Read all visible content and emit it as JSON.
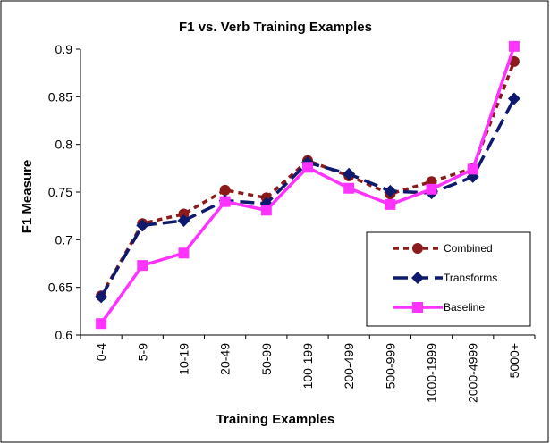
{
  "chart_data": {
    "type": "line",
    "title": "F1 vs. Verb Training Examples",
    "xlabel": "Training Examples",
    "ylabel": "F1 Measure",
    "categories": [
      "0-4",
      "5-9",
      "10-19",
      "20-49",
      "50-99",
      "100-199",
      "200-499",
      "500-999",
      "1000-1999",
      "2000-4999",
      "5000+"
    ],
    "ylim": [
      0.6,
      0.9
    ],
    "yticks": [
      "0.6",
      "0.65",
      "0.7",
      "0.75",
      "0.8",
      "0.85",
      "0.9"
    ],
    "grid": false,
    "legend_position": "right",
    "series": [
      {
        "name": "Combined",
        "color": "#8b1a1a",
        "line_style": "dotted",
        "marker": "circle",
        "values": [
          0.641,
          0.717,
          0.727,
          0.752,
          0.744,
          0.783,
          0.767,
          0.748,
          0.761,
          0.775,
          0.887
        ]
      },
      {
        "name": "Transforms",
        "color": "#0d1a6e",
        "line_style": "dashed",
        "marker": "diamond",
        "values": [
          0.64,
          0.715,
          0.72,
          0.741,
          0.738,
          0.781,
          0.769,
          0.751,
          0.749,
          0.766,
          0.848
        ]
      },
      {
        "name": "Baseline",
        "color": "#ff33ff",
        "line_style": "solid",
        "marker": "square",
        "values": [
          0.612,
          0.673,
          0.686,
          0.74,
          0.731,
          0.776,
          0.754,
          0.737,
          0.753,
          0.774,
          0.903
        ]
      }
    ]
  }
}
